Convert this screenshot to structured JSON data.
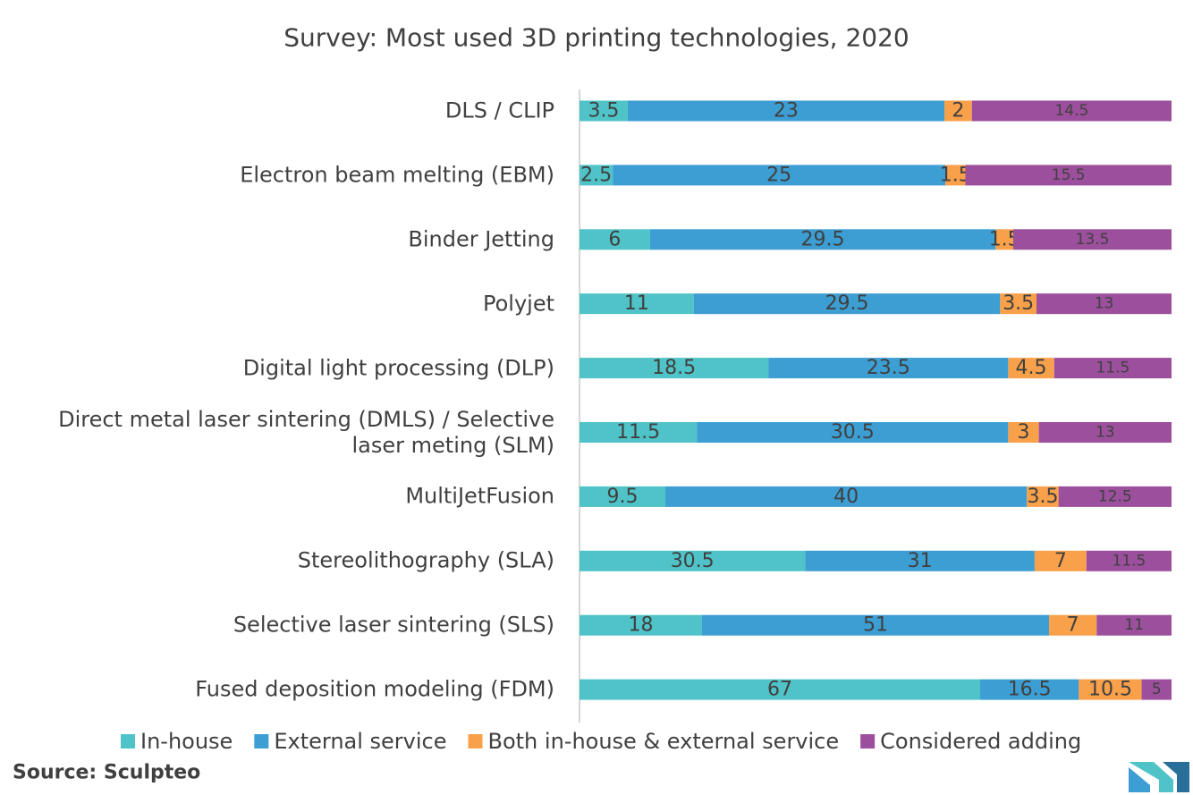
{
  "chart_data": {
    "type": "stacked_percent_barh",
    "title": "Survey: Most used 3D printing technologies, 2020",
    "categories": [
      "DLS / CLIP",
      "Electron beam melting (EBM)",
      "Binder Jetting",
      "Polyjet",
      "Digital light processing (DLP)",
      "Direct metal laser sintering (DMLS) / Selective laser meting (SLM)",
      "MultiJetFusion",
      "Stereolithography (SLA)",
      "Selective laser sintering (SLS)",
      "Fused deposition modeling (FDM)"
    ],
    "series": [
      {
        "name": "In-house",
        "color": "#4fc3c7",
        "values": [
          3.5,
          2.5,
          6,
          11,
          18.5,
          11.5,
          9.5,
          30.5,
          18,
          67
        ]
      },
      {
        "name": "External service",
        "color": "#3c9ed3",
        "values": [
          23,
          25,
          29.5,
          29.5,
          23.5,
          30.5,
          40,
          31,
          51,
          16.5
        ]
      },
      {
        "name": "Both in-house & external service",
        "color": "#f9a04a",
        "values": [
          2,
          1.5,
          1.5,
          3.5,
          4.5,
          3,
          3.5,
          7,
          7,
          10.5
        ]
      },
      {
        "name": "Considered adding",
        "color": "#9c4f9d",
        "values": [
          14.5,
          15.5,
          13.5,
          13,
          11.5,
          13,
          12.5,
          11.5,
          11,
          5
        ]
      }
    ],
    "legend": "bottom",
    "source": "Source:  Sculpteo"
  }
}
